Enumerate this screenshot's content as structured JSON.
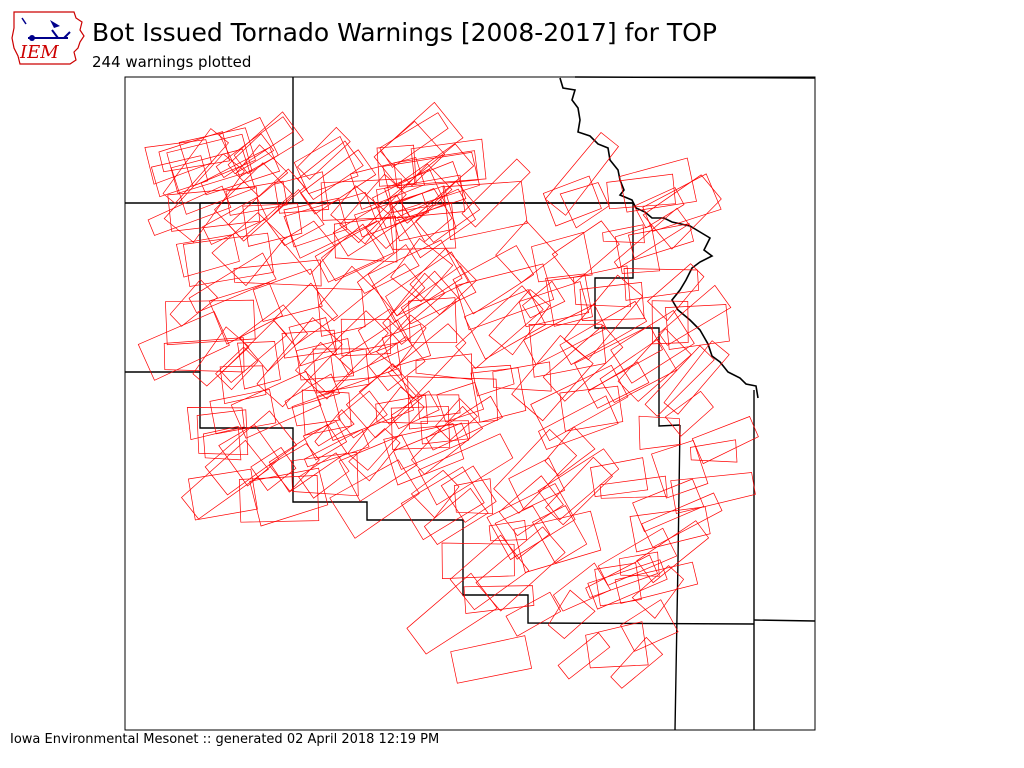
{
  "header": {
    "title": "Bot Issued Tornado Warnings [2008-2017] for TOP",
    "subtitle": "244 warnings plotted"
  },
  "logo": {
    "text": "IEM"
  },
  "footer": {
    "credit": "Iowa Environmental Mesonet :: generated 02 April 2018 12:19 PM"
  },
  "map": {
    "warning_count": 244,
    "warning_color": "#ff0000",
    "boundary_color": "#000000",
    "logo_color": "#cc0000"
  }
}
